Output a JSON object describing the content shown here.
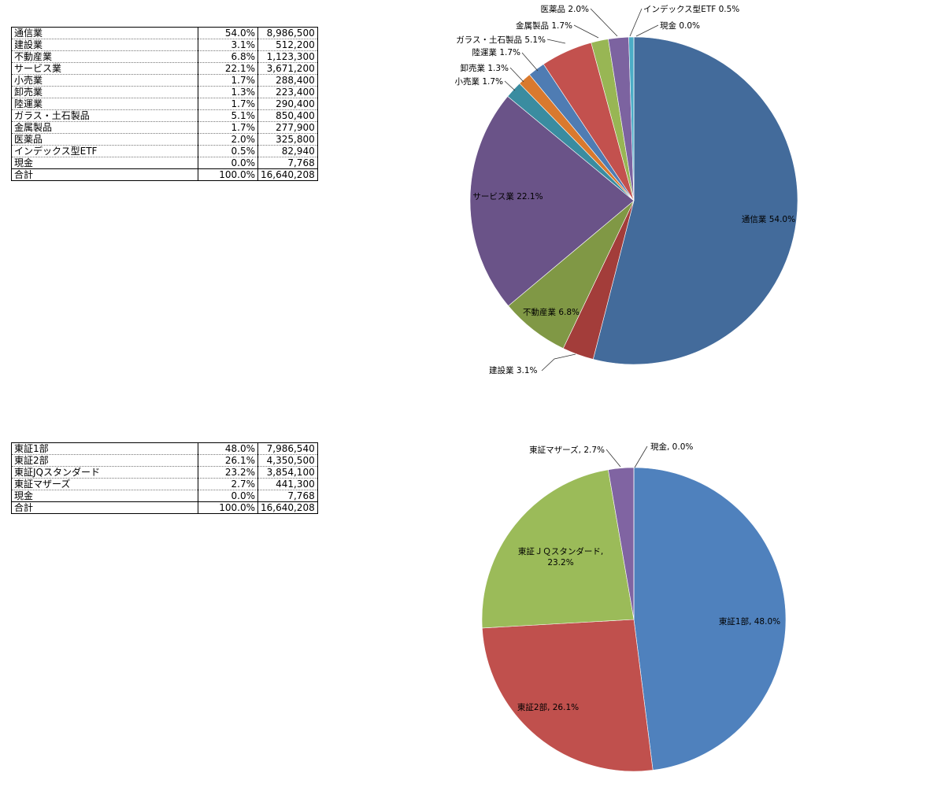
{
  "chart_data": [
    {
      "type": "pie",
      "series": [
        {
          "values": [
            54.0,
            3.1,
            6.8,
            22.1,
            1.7,
            1.3,
            1.7,
            5.1,
            1.7,
            2.0,
            0.5,
            0.0
          ]
        }
      ],
      "categories": [
        "通信業",
        "建設業",
        "不動産業",
        "サービス業",
        "小売業",
        "卸売業",
        "陸運業",
        "ガラス・土石製品",
        "金属製品",
        "医薬品",
        "インデックス型ETF",
        "現金"
      ],
      "data_labels": [
        "通信業 54.0%",
        "建設業 3.1%",
        "不動産業 6.8%",
        "サービス業 22.1%",
        "小売業 1.7%",
        "卸売業 1.3%",
        "陸運業 1.7%",
        "ガラス・土石製品 5.1%",
        "金属製品 1.7%",
        "医薬品 2.0%",
        "インデックス型ETF 0.5%",
        "現金 0.0%"
      ],
      "colors": [
        "#436b9b",
        "#a33d3a",
        "#809845",
        "#6a5388",
        "#3a8ca0",
        "#d9792e",
        "#4f7cb3",
        "#c3514e",
        "#98b654",
        "#7c63a0",
        "#4bacc6",
        "#f59d56"
      ],
      "table": {
        "rows": [
          [
            "通信業",
            "54.0%",
            "8,986,500"
          ],
          [
            "建設業",
            "3.1%",
            "512,200"
          ],
          [
            "不動産業",
            "6.8%",
            "1,123,300"
          ],
          [
            "サービス業",
            "22.1%",
            "3,671,200"
          ],
          [
            "小売業",
            "1.7%",
            "288,400"
          ],
          [
            "卸売業",
            "1.3%",
            "223,400"
          ],
          [
            "陸運業",
            "1.7%",
            "290,400"
          ],
          [
            "ガラス・土石製品",
            "5.1%",
            "850,400"
          ],
          [
            "金属製品",
            "1.7%",
            "277,900"
          ],
          [
            "医薬品",
            "2.0%",
            "325,800"
          ],
          [
            "インデックス型ETF",
            "0.5%",
            "82,940"
          ],
          [
            "現金",
            "0.0%",
            "7,768"
          ]
        ],
        "total": [
          "合計",
          "100.0%",
          "16,640,208"
        ]
      }
    },
    {
      "type": "pie",
      "series": [
        {
          "values": [
            48.0,
            26.1,
            23.2,
            2.7,
            0.0
          ]
        }
      ],
      "categories": [
        "東証1部",
        "東証2部",
        "東証JQスタンダード",
        "東証マザーズ",
        "現金"
      ],
      "data_labels": [
        "東証1部, 48.0%",
        "東証2部, 26.1%",
        "東証ＪＱスタンダード, 23.2%",
        "東証マザーズ, 2.7%",
        "現金, 0.0%"
      ],
      "colors": [
        "#4f81bd",
        "#c0504d",
        "#9bbb59",
        "#8064a2",
        "#4bacc6"
      ],
      "table": {
        "rows": [
          [
            "東証1部",
            "48.0%",
            "7,986,540"
          ],
          [
            "東証2部",
            "26.1%",
            "4,350,500"
          ],
          [
            "東証JQスタンダード",
            "23.2%",
            "3,854,100"
          ],
          [
            "東証マザーズ",
            "2.7%",
            "441,300"
          ],
          [
            "現金",
            "0.0%",
            "7,768"
          ]
        ],
        "total": [
          "合計",
          "100.0%",
          "16,640,208"
        ]
      }
    }
  ]
}
